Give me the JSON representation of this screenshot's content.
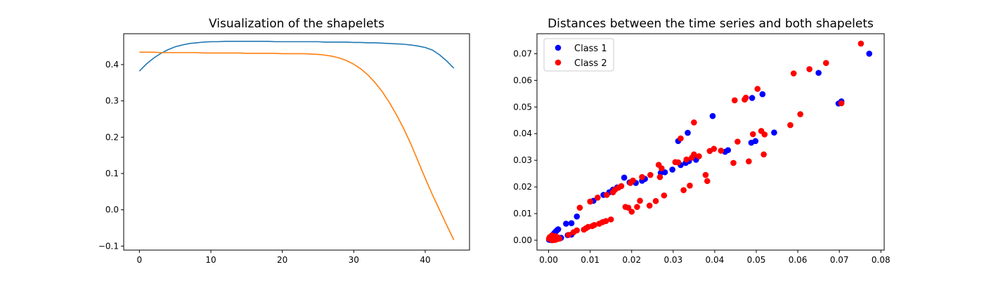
{
  "chart_data": [
    {
      "type": "line",
      "title": "Visualization of the shapelets",
      "xlabel": "",
      "ylabel": "",
      "xlim": [
        -2.2,
        46.2
      ],
      "ylim": [
        -0.111,
        0.485
      ],
      "xticks": [
        0,
        10,
        20,
        30,
        40
      ],
      "yticks": [
        -0.1,
        0.0,
        0.1,
        0.2,
        0.3,
        0.4
      ],
      "ytick_labels": [
        "−0.1",
        "0.0",
        "0.1",
        "0.2",
        "0.3",
        "0.4"
      ],
      "grid": false,
      "colors": [
        "#1f77b4",
        "#ff7f0e"
      ],
      "series": [
        {
          "x": [
            0,
            1,
            2,
            3,
            4,
            5,
            6,
            7,
            8,
            9,
            10,
            11,
            12,
            13,
            14,
            15,
            16,
            17,
            18,
            19,
            20,
            21,
            22,
            23,
            24,
            25,
            26,
            27,
            28,
            29,
            30,
            31,
            32,
            33,
            34,
            35,
            36,
            37,
            38,
            39,
            40,
            41,
            42,
            43,
            44
          ],
          "values": [
            0.382,
            0.402,
            0.418,
            0.431,
            0.441,
            0.449,
            0.454,
            0.458,
            0.46,
            0.462,
            0.463,
            0.463,
            0.464,
            0.464,
            0.464,
            0.464,
            0.464,
            0.464,
            0.464,
            0.463,
            0.463,
            0.463,
            0.463,
            0.463,
            0.463,
            0.463,
            0.462,
            0.462,
            0.462,
            0.462,
            0.461,
            0.461,
            0.46,
            0.46,
            0.459,
            0.458,
            0.457,
            0.456,
            0.454,
            0.451,
            0.447,
            0.44,
            0.427,
            0.41,
            0.39
          ]
        },
        {
          "x": [
            0,
            1,
            2,
            3,
            4,
            5,
            6,
            7,
            8,
            9,
            10,
            11,
            12,
            13,
            14,
            15,
            16,
            17,
            18,
            19,
            20,
            21,
            22,
            23,
            24,
            25,
            26,
            27,
            28,
            29,
            30,
            31,
            32,
            33,
            34,
            35,
            36,
            37,
            38,
            39,
            40,
            41,
            42,
            43,
            44
          ],
          "values": [
            0.434,
            0.434,
            0.434,
            0.433,
            0.433,
            0.433,
            0.433,
            0.433,
            0.433,
            0.432,
            0.432,
            0.432,
            0.432,
            0.432,
            0.432,
            0.431,
            0.431,
            0.431,
            0.431,
            0.431,
            0.43,
            0.43,
            0.43,
            0.43,
            0.429,
            0.428,
            0.426,
            0.423,
            0.418,
            0.411,
            0.401,
            0.388,
            0.371,
            0.35,
            0.325,
            0.295,
            0.261,
            0.223,
            0.181,
            0.134,
            0.087,
            0.042,
            0.0,
            -0.042,
            -0.083
          ]
        }
      ]
    },
    {
      "type": "scatter",
      "title": "Distances between the time series and both shapelets",
      "xlabel": "",
      "ylabel": "",
      "xlim": [
        -0.0028,
        0.0808
      ],
      "ylim": [
        -0.0037,
        0.0775
      ],
      "xticks": [
        0.0,
        0.01,
        0.02,
        0.03,
        0.04,
        0.05,
        0.06,
        0.07,
        0.08
      ],
      "xtick_labels": [
        "0.00",
        "0.01",
        "0.02",
        "0.03",
        "0.04",
        "0.05",
        "0.06",
        "0.07",
        "0.08"
      ],
      "yticks": [
        0.0,
        0.01,
        0.02,
        0.03,
        0.04,
        0.05,
        0.06,
        0.07
      ],
      "ytick_labels": [
        "0.00",
        "0.01",
        "0.02",
        "0.03",
        "0.04",
        "0.05",
        "0.06",
        "0.07"
      ],
      "grid": false,
      "legend_position": "top-left",
      "series": [
        {
          "name": "Class 1",
          "color": "#0000ff",
          "points": [
            [
              0.0001,
              0.0002
            ],
            [
              0.0003,
              0.0006
            ],
            [
              0.0005,
              0.0011
            ],
            [
              0.0008,
              0.0016
            ],
            [
              0.0011,
              0.0022
            ],
            [
              0.0014,
              0.0027
            ],
            [
              0.0017,
              0.0032
            ],
            [
              0.002,
              0.0037
            ],
            [
              0.0023,
              0.0041
            ],
            [
              0.0012,
              0.0003
            ],
            [
              0.0021,
              0.0007
            ],
            [
              0.003,
              0.0009
            ],
            [
              0.0004,
              0.0001
            ],
            [
              0.0007,
              0.0009
            ],
            [
              0.0042,
              0.0062
            ],
            [
              0.0055,
              0.0064
            ],
            [
              0.0068,
              0.0089
            ],
            [
              0.0046,
              0.0019
            ],
            [
              0.0055,
              0.0021
            ],
            [
              0.0108,
              0.0148
            ],
            [
              0.0132,
              0.017
            ],
            [
              0.0146,
              0.018
            ],
            [
              0.0155,
              0.019
            ],
            [
              0.0165,
              0.0198
            ],
            [
              0.0182,
              0.0235
            ],
            [
              0.0195,
              0.0217
            ],
            [
              0.021,
              0.0215
            ],
            [
              0.0225,
              0.0223
            ],
            [
              0.0232,
              0.023
            ],
            [
              0.027,
              0.0253
            ],
            [
              0.028,
              0.0255
            ],
            [
              0.0298,
              0.0265
            ],
            [
              0.0312,
              0.0372
            ],
            [
              0.0318,
              0.0282
            ],
            [
              0.033,
              0.029
            ],
            [
              0.0335,
              0.0403
            ],
            [
              0.0338,
              0.0297
            ],
            [
              0.0355,
              0.0302
            ],
            [
              0.0395,
              0.0466
            ],
            [
              0.0425,
              0.0332
            ],
            [
              0.0432,
              0.0338
            ],
            [
              0.0488,
              0.0366
            ],
            [
              0.049,
              0.0534
            ],
            [
              0.0498,
              0.0372
            ],
            [
              0.0515,
              0.0548
            ],
            [
              0.0543,
              0.0404
            ],
            [
              0.065,
              0.0628
            ],
            [
              0.0698,
              0.0513
            ],
            [
              0.0705,
              0.0521
            ],
            [
              0.0772,
              0.07
            ]
          ]
        },
        {
          "name": "Class 2",
          "color": "#ff0000",
          "points": [
            [
              0.0001,
              0.0006
            ],
            [
              0.0003,
              0.0012
            ],
            [
              0.0006,
              0.0004
            ],
            [
              0.0009,
              0.0
            ],
            [
              0.0012,
              0.0008
            ],
            [
              0.0016,
              0.0015
            ],
            [
              0.0019,
              0.0003
            ],
            [
              0.0022,
              0.0011
            ],
            [
              0.0015,
              0.0001
            ],
            [
              0.0026,
              0.0006
            ],
            [
              0.0008,
              0.0018
            ],
            [
              0.0048,
              0.002
            ],
            [
              0.006,
              0.003
            ],
            [
              0.0068,
              0.0037
            ],
            [
              0.0075,
              0.0122
            ],
            [
              0.0085,
              0.004
            ],
            [
              0.009,
              0.0045
            ],
            [
              0.0095,
              0.005
            ],
            [
              0.01,
              0.0145
            ],
            [
              0.0105,
              0.0053
            ],
            [
              0.011,
              0.0057
            ],
            [
              0.0118,
              0.016
            ],
            [
              0.0122,
              0.0062
            ],
            [
              0.013,
              0.0068
            ],
            [
              0.0138,
              0.0072
            ],
            [
              0.014,
              0.017
            ],
            [
              0.015,
              0.0078
            ],
            [
              0.0155,
              0.018
            ],
            [
              0.016,
              0.019
            ],
            [
              0.0168,
              0.0197
            ],
            [
              0.0175,
              0.0203
            ],
            [
              0.0185,
              0.0125
            ],
            [
              0.0192,
              0.0122
            ],
            [
              0.0197,
              0.0215
            ],
            [
              0.02,
              0.0107
            ],
            [
              0.0203,
              0.0224
            ],
            [
              0.0213,
              0.0125
            ],
            [
              0.022,
              0.0148
            ],
            [
              0.0225,
              0.0237
            ],
            [
              0.0245,
              0.0245
            ],
            [
              0.0243,
              0.013
            ],
            [
              0.0258,
              0.0147
            ],
            [
              0.0265,
              0.0283
            ],
            [
              0.0268,
              0.0237
            ],
            [
              0.0272,
              0.027
            ],
            [
              0.0278,
              0.0168
            ],
            [
              0.0305,
              0.0293
            ],
            [
              0.0312,
              0.0292
            ],
            [
              0.0318,
              0.0382
            ],
            [
              0.0325,
              0.0188
            ],
            [
              0.0332,
              0.0303
            ],
            [
              0.034,
              0.0205
            ],
            [
              0.0345,
              0.031
            ],
            [
              0.035,
              0.0322
            ],
            [
              0.035,
              0.0442
            ],
            [
              0.0362,
              0.0315
            ],
            [
              0.0378,
              0.0245
            ],
            [
              0.0382,
              0.0222
            ],
            [
              0.0388,
              0.0335
            ],
            [
              0.0398,
              0.0343
            ],
            [
              0.0415,
              0.0336
            ],
            [
              0.0445,
              0.029
            ],
            [
              0.0448,
              0.0525
            ],
            [
              0.0455,
              0.037
            ],
            [
              0.0472,
              0.0528
            ],
            [
              0.0475,
              0.0535
            ],
            [
              0.0482,
              0.0296
            ],
            [
              0.0492,
              0.0398
            ],
            [
              0.0503,
              0.0568
            ],
            [
              0.0512,
              0.041
            ],
            [
              0.0518,
              0.0322
            ],
            [
              0.052,
              0.0397
            ],
            [
              0.0582,
              0.0432
            ],
            [
              0.059,
              0.0626
            ],
            [
              0.0606,
              0.0473
            ],
            [
              0.0628,
              0.0642
            ],
            [
              0.0668,
              0.0665
            ],
            [
              0.0705,
              0.0514
            ],
            [
              0.0752,
              0.0738
            ]
          ]
        }
      ]
    }
  ]
}
